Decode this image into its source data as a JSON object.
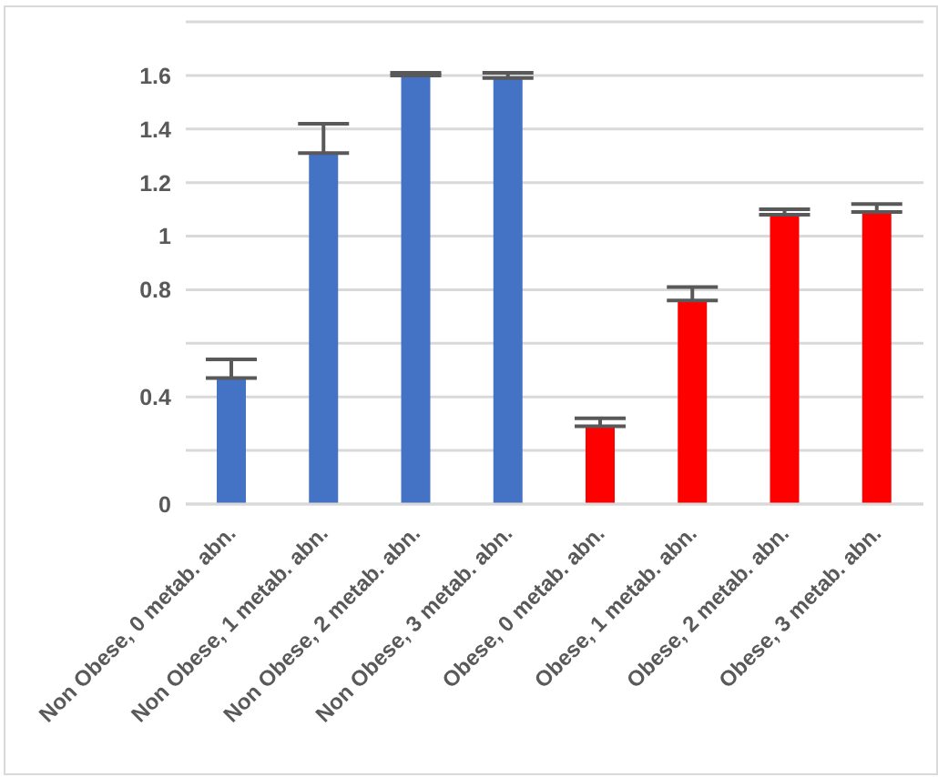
{
  "chart_data": {
    "type": "bar",
    "categories": [
      "Non Obese, 0 metab. abn.",
      "Non Obese, 1 metab. abn.",
      "Non Obese, 2 metab. abn.",
      "Non Obese, 3 metab. abn.",
      "Obese, 0 metab. abn.",
      "Obese, 1 metab. abn.",
      "Obese, 2 metab. abn.",
      "Obese, 3 metab. abn."
    ],
    "values": [
      0.47,
      1.31,
      1.6,
      1.59,
      0.29,
      0.76,
      1.08,
      1.09
    ],
    "colors": [
      "#4472c4",
      "#4472c4",
      "#4472c4",
      "#4472c4",
      "#ff0000",
      "#ff0000",
      "#ff0000",
      "#ff0000"
    ],
    "errors": [
      [
        0.47,
        0.54
      ],
      [
        1.31,
        1.42
      ],
      [
        1.6,
        1.61
      ],
      [
        1.59,
        1.61
      ],
      [
        0.29,
        0.32
      ],
      [
        0.76,
        0.81
      ],
      [
        1.08,
        1.1
      ],
      [
        1.09,
        1.12
      ]
    ],
    "ylim": [
      0,
      1.8
    ],
    "yticks": [
      0,
      {
        "value": 0.2,
        "label": null
      },
      0.4,
      {
        "value": 0.6,
        "label": null
      },
      0.8,
      1,
      1.2,
      1.4,
      1.6,
      {
        "value": 1.8,
        "label": null
      }
    ],
    "grid": "y",
    "legend": false
  }
}
